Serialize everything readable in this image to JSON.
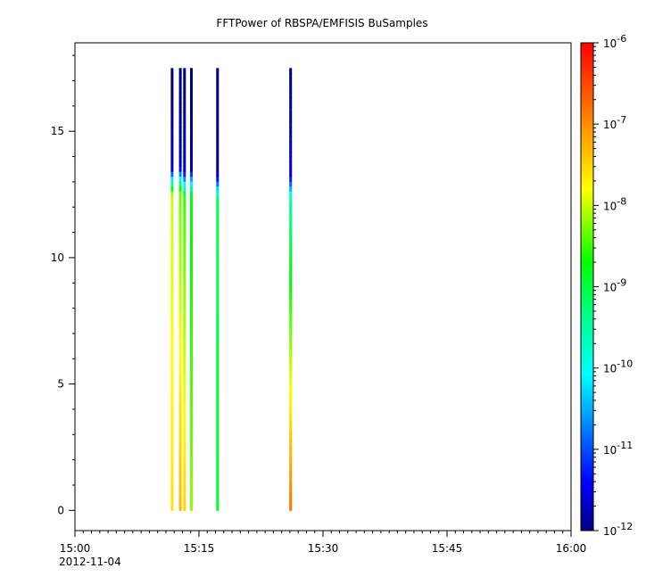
{
  "chart_data": {
    "type": "heatmap",
    "title": "FFTPower of RBSPA/EMFISIS  BuSamples",
    "x_axis": {
      "range": [
        "15:00",
        "16:00"
      ],
      "tick_labels": [
        "15:00",
        "15:15",
        "15:30",
        "15:45",
        "16:00"
      ],
      "date_label": "2012-11-04"
    },
    "y_axis": {
      "range": [
        -0.8,
        18.5
      ],
      "ticks": [
        0,
        5,
        10,
        15
      ],
      "tick_labels": [
        "0",
        "5",
        "10",
        "15"
      ]
    },
    "colorbar": {
      "scale": "log",
      "range": [
        1e-12,
        1e-06
      ],
      "colormap": "rainbow (blue to red)",
      "tick_labels": [
        {
          "base": "10",
          "exp": "-12",
          "value": 1e-12
        },
        {
          "base": "10",
          "exp": "-11",
          "value": 1e-11
        },
        {
          "base": "10",
          "exp": "-10",
          "value": 1e-10
        },
        {
          "base": "10",
          "exp": "-9",
          "value": 1e-09
        },
        {
          "base": "10",
          "exp": "-8",
          "value": 1e-08
        },
        {
          "base": "10",
          "exp": "-7",
          "value": 1e-07
        },
        {
          "base": "10",
          "exp": "-6",
          "value": 1e-06
        }
      ]
    },
    "stripes": [
      {
        "time": "15:11:45",
        "low_level": -7.6,
        "high_level": -8.0,
        "noise_level": -11.5,
        "cutoff": 12.5,
        "max_freq": 17.5
      },
      {
        "time": "15:12:45",
        "low_level": -7.3,
        "high_level": -8.3,
        "noise_level": -11.6,
        "cutoff": 12.6,
        "max_freq": 17.5
      },
      {
        "time": "15:13:15",
        "low_level": -7.5,
        "high_level": -8.5,
        "noise_level": -11.5,
        "cutoff": 12.4,
        "max_freq": 17.5
      },
      {
        "time": "15:14:05",
        "low_level": -8.2,
        "high_level": -8.8,
        "noise_level": -11.6,
        "cutoff": 12.5,
        "max_freq": 17.5
      },
      {
        "time": "15:17:15",
        "low_level": -8.9,
        "high_level": -9.1,
        "noise_level": -11.8,
        "cutoff": 12.3,
        "max_freq": 17.5
      },
      {
        "time": "15:26:05",
        "low_level": -6.8,
        "high_level": -9.4,
        "noise_level": -11.4,
        "cutoff": 12.2,
        "max_freq": 17.5
      }
    ]
  }
}
